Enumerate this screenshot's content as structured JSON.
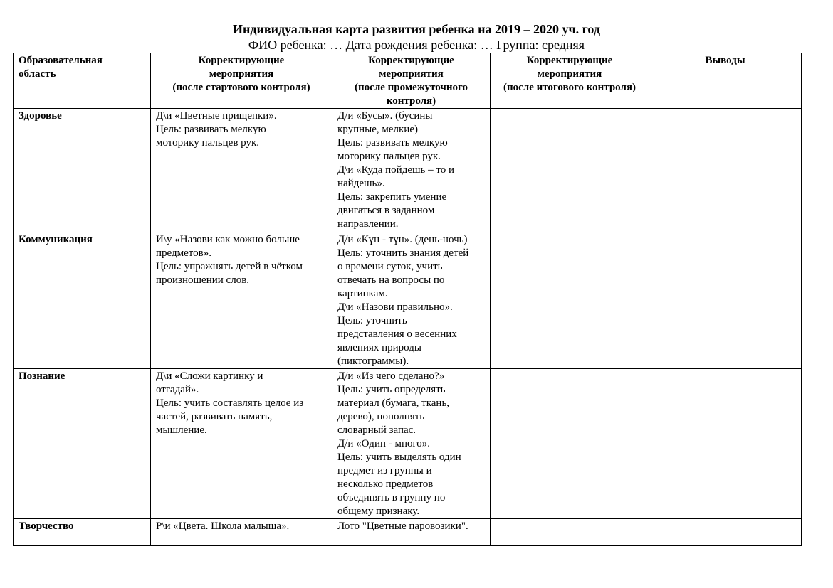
{
  "header": {
    "title": "Индивидуальная карта развития ребенка на 2019 – 2020 уч. год",
    "subtitle": "ФИО ребенка: … Дата рождения ребенка: … Группа: средняя"
  },
  "table": {
    "columns": [
      [
        "Образовательная",
        "область"
      ],
      [
        "Корректирующие",
        "мероприятия",
        "(после стартового контроля)"
      ],
      [
        "Корректирующие",
        "мероприятия",
        "(после промежуточного",
        "контроля)"
      ],
      [
        "Корректирующие",
        "мероприятия",
        "(после итогового контроля)"
      ],
      [
        "Выводы"
      ]
    ],
    "rows": [
      {
        "area": "Здоровье",
        "start": [
          "Д\\и «Цветные прищепки».",
          "Цель: развивать мелкую",
          "моторику пальцев рук."
        ],
        "mid": [
          "Д/и «Бусы». (бусины",
          "крупные, мелкие)",
          "Цель: развивать мелкую",
          "моторику пальцев рук.",
          "Д\\и «Куда пойдешь – то и",
          "найдешь».",
          "Цель: закрепить умение",
          "двигаться в заданном",
          "направлении."
        ],
        "final": [],
        "conclusions": []
      },
      {
        "area": "Коммуникация",
        "start": [
          "И\\у «Назови как можно больше",
          "предметов».",
          "Цель: упражнять детей в чётком",
          "произношении слов."
        ],
        "mid": [
          "Д/и «Күн - түн». (день-ночь)",
          "Цель: уточнить знания детей",
          "о времени суток, учить",
          "отвечать на вопросы по",
          "картинкам.",
          "Д\\и «Назови правильно».",
          "Цель: уточнить",
          "представления о весенних",
          "явлениях природы",
          "(пиктограммы)."
        ],
        "final": [],
        "conclusions": []
      },
      {
        "area": "Познание",
        "start": [
          "Д\\и «Сложи картинку и",
          "отгадай».",
          "Цель: учить составлять целое из",
          "частей, развивать память,",
          "мышление."
        ],
        "mid": [
          "Д/и «Из чего сделано?»",
          "Цель: учить определять",
          "материал (бумага, ткань,",
          "дерево), пополнять",
          "словарный запас.",
          "Д/и «Один - много».",
          "Цель: учить выделять один",
          "предмет из группы и",
          "несколько предметов",
          "объединять в группу по",
          "общему признаку."
        ],
        "final": [],
        "conclusions": []
      },
      {
        "area": "Творчество",
        "start": [
          "Р\\и «Цвета. Школа малыша»."
        ],
        "mid": [
          "Лото \"Цветные паровозики\"."
        ],
        "final": [],
        "conclusions": []
      }
    ]
  }
}
